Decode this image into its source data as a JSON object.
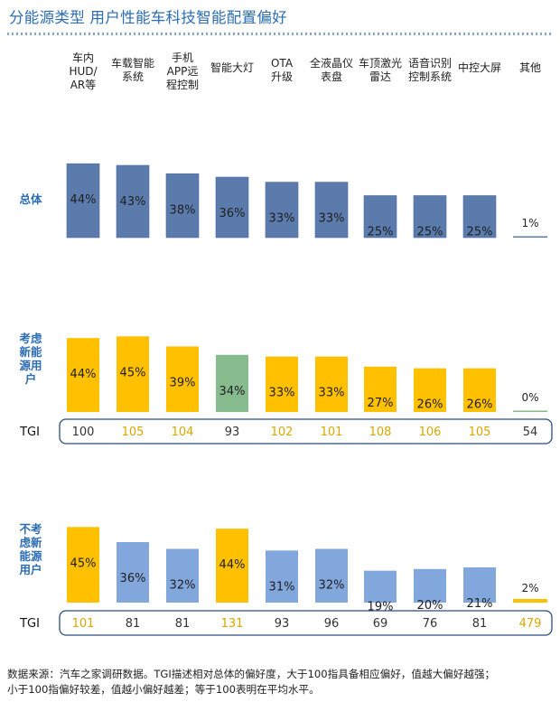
{
  "title": "分能源类型 用户性能车科技智能配置偏好",
  "footnote": {
    "line1": "数据来源：汽车之家调研数据。TGI描述相对总体的偏好度，大于100指具备相应偏好，值越大偏好越强；",
    "line2": "小于100指偏好较差，值越小偏好越差；等于100表明在平均水平。"
  },
  "colors": {
    "overall": "#5b7bad",
    "consider_high": "#86bb8d",
    "consider_low": "#ffc000",
    "nonconsider_normal": "#82a7dd",
    "nonconsider_high": "#ffc000",
    "tgi_high_text": "#d9a800",
    "tgi_normal_text": "#333333",
    "tgi_box_border": "#2c4d7e"
  },
  "chart_data": {
    "type": "bar",
    "categories": [
      [
        "车内",
        "HUD/",
        "AR等"
      ],
      [
        "车载智能",
        "系统"
      ],
      [
        "手机",
        "APP远",
        "程控制"
      ],
      [
        "智能大灯"
      ],
      [
        "OTA",
        "升级"
      ],
      [
        "全液晶仪",
        "表盘"
      ],
      [
        "车顶激光",
        "雷达"
      ],
      [
        "语音识别",
        "控制系统"
      ],
      [
        "中控大屏"
      ],
      [
        "其他"
      ]
    ],
    "value_unit": "%",
    "tgi_label": "TGI",
    "series": [
      {
        "name": [
          "总体"
        ],
        "values": [
          44,
          43,
          38,
          36,
          33,
          33,
          25,
          25,
          25,
          1
        ]
      },
      {
        "name": [
          "考虑",
          "新能",
          "源用",
          "户"
        ],
        "values": [
          44,
          45,
          39,
          34,
          33,
          33,
          27,
          26,
          26,
          0
        ],
        "tgi": [
          100,
          105,
          104,
          93,
          102,
          101,
          108,
          106,
          105,
          54
        ]
      },
      {
        "name": [
          "不考",
          "虑新",
          "能源",
          "用户"
        ],
        "values": [
          45,
          36,
          32,
          44,
          31,
          32,
          19,
          20,
          21,
          2
        ],
        "tgi": [
          101,
          81,
          81,
          131,
          93,
          96,
          69,
          76,
          81,
          479
        ]
      }
    ]
  }
}
